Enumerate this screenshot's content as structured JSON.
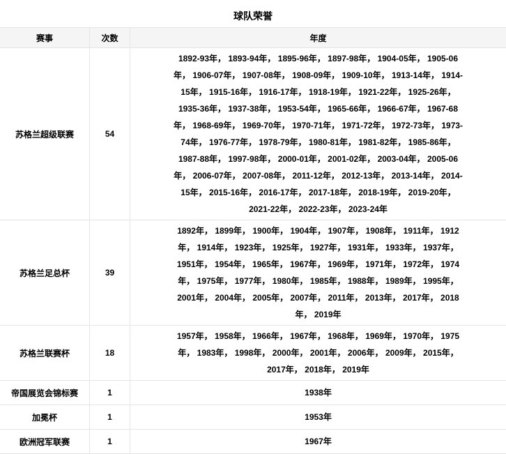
{
  "title": "球队荣誉",
  "headers": {
    "competition": "赛事",
    "count": "次数",
    "years": "年度"
  },
  "separator": "，",
  "rows": [
    {
      "competition": "苏格兰超级联赛",
      "count": "54",
      "years": [
        "1892-93年",
        "1893-94年",
        "1895-96年",
        "1897-98年",
        "1904-05年",
        "1905-06年",
        "1906-07年",
        "1907-08年",
        "1908-09年",
        "1909-10年",
        "1913-14年",
        "1914-15年",
        "1915-16年",
        "1916-17年",
        "1918-19年",
        "1921-22年",
        "1925-26年",
        "1935-36年",
        "1937-38年",
        "1953-54年",
        "1965-66年",
        "1966-67年",
        "1967-68年",
        "1968-69年",
        "1969-70年",
        "1970-71年",
        "1971-72年",
        "1972-73年",
        "1973-74年",
        "1976-77年",
        "1978-79年",
        "1980-81年",
        "1981-82年",
        "1985-86年",
        "1987-88年",
        "1997-98年",
        "2000-01年",
        "2001-02年",
        "2003-04年",
        "2005-06年",
        "2006-07年",
        "2007-08年",
        "2011-12年",
        "2012-13年",
        "2013-14年",
        "2014-15年",
        "2015-16年",
        "2016-17年",
        "2017-18年",
        "2018-19年",
        "2019-20年",
        "2021-22年",
        "2022-23年",
        "2023-24年"
      ]
    },
    {
      "competition": "苏格兰足总杯",
      "count": "39",
      "years": [
        "1892年",
        "1899年",
        "1900年",
        "1904年",
        "1907年",
        "1908年",
        "1911年",
        "1912年",
        "1914年",
        "1923年",
        "1925年",
        "1927年",
        "1931年",
        "1933年",
        "1937年",
        "1951年",
        "1954年",
        "1965年",
        "1967年",
        "1969年",
        "1971年",
        "1972年",
        "1974年",
        "1975年",
        "1977年",
        "1980年",
        "1985年",
        "1988年",
        "1989年",
        "1995年",
        "2001年",
        "2004年",
        "2005年",
        "2007年",
        "2011年",
        "2013年",
        "2017年",
        "2018年",
        "2019年"
      ]
    },
    {
      "competition": "苏格兰联赛杯",
      "count": "18",
      "years": [
        "1957年",
        "1958年",
        "1966年",
        "1967年",
        "1968年",
        "1969年",
        "1970年",
        "1975年",
        "1983年",
        "1998年",
        "2000年",
        "2001年",
        "2006年",
        "2009年",
        "2015年",
        "2017年",
        "2018年",
        "2019年"
      ]
    },
    {
      "competition": "帝国展览会锦标赛",
      "count": "1",
      "years": [
        "1938年"
      ]
    },
    {
      "competition": "加冕杯",
      "count": "1",
      "years": [
        "1953年"
      ]
    },
    {
      "competition": "欧洲冠军联赛",
      "count": "1",
      "years": [
        "1967年"
      ]
    }
  ]
}
